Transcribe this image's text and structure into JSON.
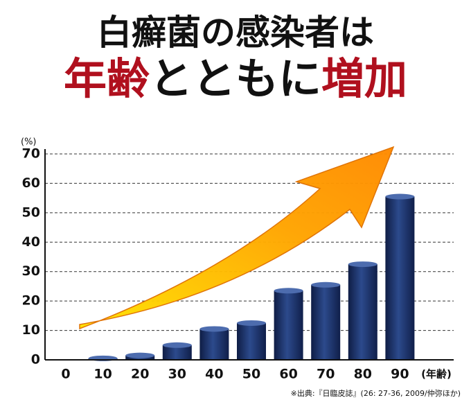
{
  "chart_data": {
    "type": "bar",
    "title_lines": [
      [
        {
          "text": "白癬菌の感染者は",
          "color": "#111111"
        }
      ],
      [
        {
          "text": "年齢",
          "color": "#b0101e"
        },
        {
          "text": "とともに",
          "color": "#111111"
        },
        {
          "text": "増加",
          "color": "#b0101e"
        }
      ]
    ],
    "y_label": "(%)",
    "x_label": "(年齢)",
    "source": "※出典:『日臨皮誌』(26: 27-36, 2009/仲弥ほか)",
    "categories": [
      "0",
      "10",
      "20",
      "30",
      "40",
      "50",
      "60",
      "70",
      "80",
      "90"
    ],
    "values": [
      null,
      0.5,
      1.5,
      5,
      10.5,
      12.5,
      23.5,
      25.5,
      32.5,
      55.5
    ],
    "color": "#1e3366",
    "ylim": [
      0,
      70
    ],
    "yticks": [
      0,
      10,
      20,
      30,
      40,
      50,
      60,
      70
    ],
    "grid": true
  }
}
